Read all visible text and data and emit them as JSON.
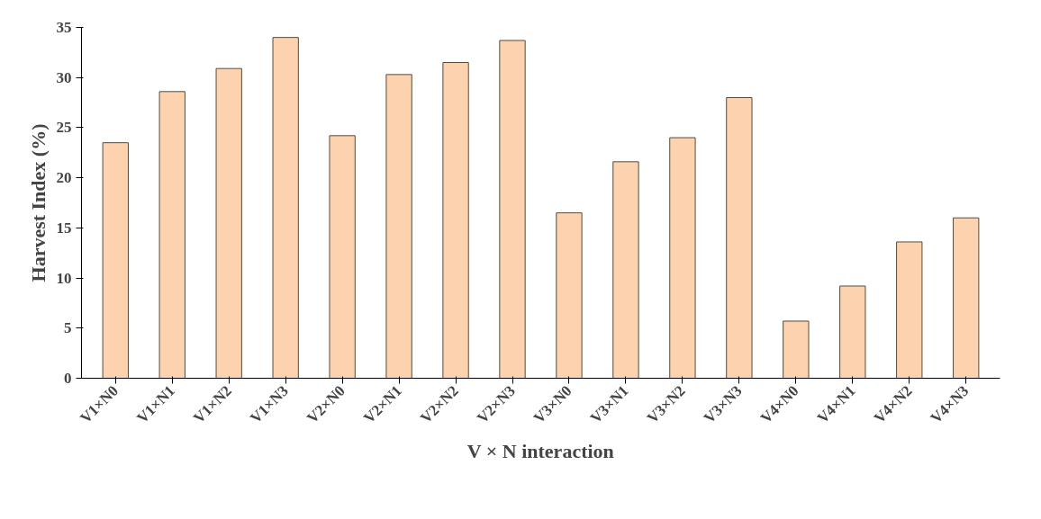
{
  "chart_data": {
    "type": "bar",
    "xlabel": "V × N interaction",
    "ylabel": "Harvest Index (%)",
    "categories": [
      "V1×N0",
      "V1×N1",
      "V1×N2",
      "V1×N3",
      "V2×N0",
      "V2×N1",
      "V2×N2",
      "V2×N3",
      "V3×N0",
      "V3×N1",
      "V3×N2",
      "V3×N3",
      "V4×N0",
      "V4×N1",
      "V4×N2",
      "V4×N3"
    ],
    "values": [
      23.5,
      28.6,
      30.9,
      34,
      24.2,
      30.3,
      31.5,
      33.7,
      16.5,
      21.6,
      24,
      28,
      5.7,
      9.2,
      13.6,
      16
    ],
    "color": "#fcd3ae",
    "ylim": [
      0,
      35
    ],
    "yticks": [
      0,
      5,
      10,
      15,
      20,
      25,
      30,
      35
    ],
    "grid": false
  }
}
